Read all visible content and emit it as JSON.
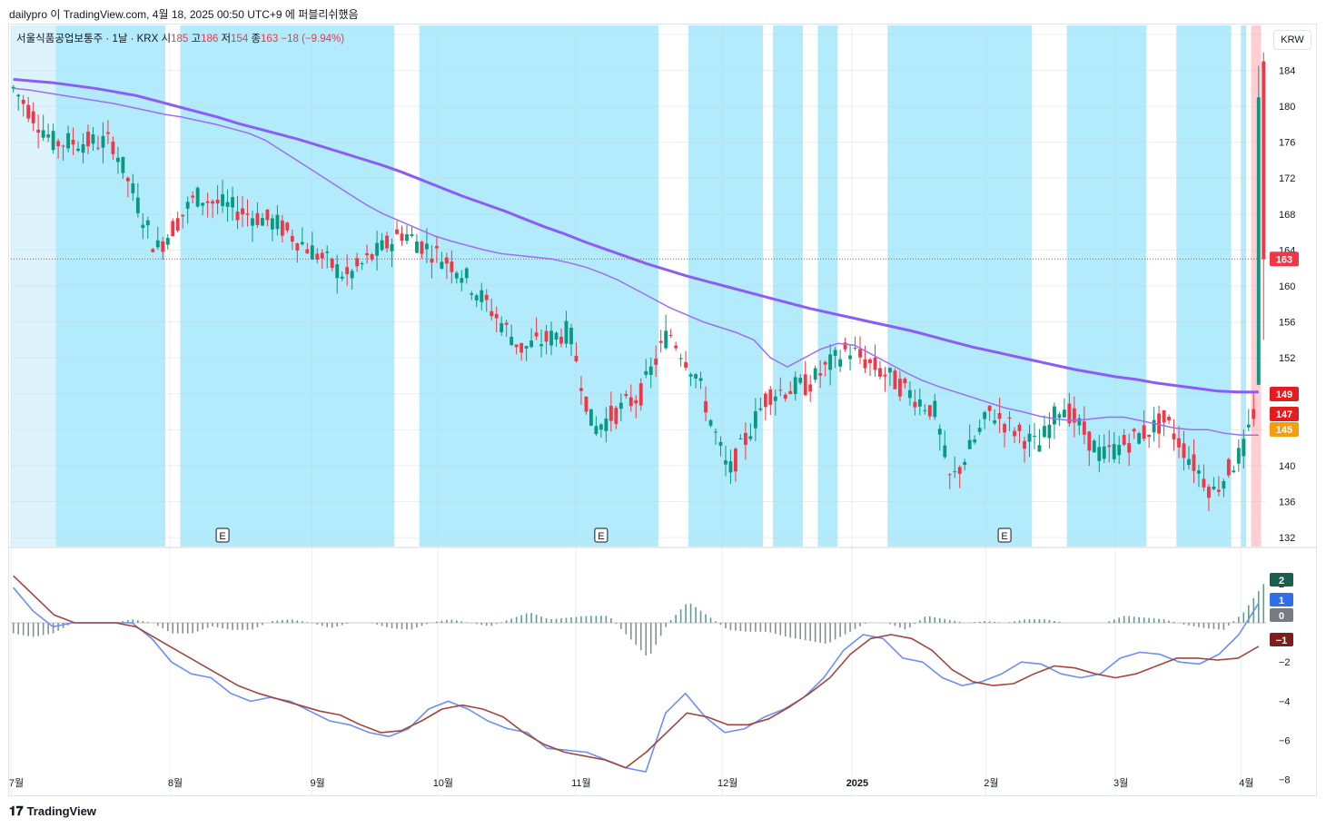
{
  "header": {
    "attribution": "dailypro 이 TradingView.com, 4월 18, 2025 00:50 UTC+9 에 퍼블리쉬했음"
  },
  "legend": {
    "symbol": "서울식품공업보통주 · 1날 · KRX",
    "open_label": "시",
    "open": "185",
    "high_label": "고",
    "high": "186",
    "low_label": "저",
    "low": "154",
    "close_label": "종",
    "close": "163",
    "change": "−18 (−9.94%)"
  },
  "currency_button": "KRW",
  "footer": {
    "brand": "TradingView"
  },
  "colors": {
    "up": "#089981",
    "down": "#f23645",
    "ma_fast": "#9c6ef2",
    "ma_slow": "#8b5cf6",
    "highlight_zone": "#b2ebfb",
    "alert_zone": "#ffcdd2",
    "macd_line": "#6b8ff2",
    "signal_line": "#a0463c",
    "hist": "#5d9e8e"
  },
  "chart_data": [
    {
      "type": "candlestick",
      "price_axis": {
        "ticks": [
          "188",
          "184",
          "180",
          "176",
          "172",
          "168",
          "164",
          "160",
          "156",
          "152",
          "148",
          "144",
          "140",
          "136",
          "132"
        ],
        "ylim": [
          131,
          189
        ]
      },
      "time_axis": {
        "ticks": [
          "7월",
          "8월",
          "9월",
          "10월",
          "11월",
          "12월",
          "2025",
          "2월",
          "3월",
          "4월"
        ]
      },
      "last_price_line": 163,
      "price_labels": [
        {
          "value": "163",
          "color": "#f23645"
        },
        {
          "value": "149",
          "color": "#e11d1d"
        },
        {
          "value": "147",
          "color": "#e11d1d"
        },
        {
          "value": "145",
          "color": "#f59e0b"
        }
      ],
      "event_markers": [
        {
          "label": "E",
          "x_index": 42
        },
        {
          "label": "E",
          "x_index": 118
        },
        {
          "label": "E",
          "x_index": 199
        }
      ],
      "highlight_zones": [
        [
          0,
          9
        ],
        [
          9,
          31
        ],
        [
          34,
          77
        ],
        [
          82,
          130
        ],
        [
          136,
          151
        ],
        [
          153,
          159
        ],
        [
          162,
          166
        ],
        [
          176,
          205
        ],
        [
          212,
          228
        ],
        [
          234,
          245
        ],
        [
          247,
          248
        ]
      ],
      "alert_zone": [
        249,
        251
      ],
      "ma_fast": [
        182,
        181.8,
        181.5,
        181.2,
        180.9,
        180.6,
        180.3,
        179.9,
        179.5,
        179.1,
        178.8,
        178.4,
        178.0,
        177.5,
        177.0,
        176.2,
        175.0,
        173.8,
        172.6,
        171.4,
        170.2,
        169.0,
        168.0,
        167.2,
        166.4,
        165.6,
        165.0,
        164.5,
        164.0,
        163.6,
        163.4,
        163.2,
        163.0,
        162.6,
        162.1,
        161.4,
        160.6,
        159.6,
        158.6,
        157.6,
        156.8,
        156.0,
        155.4,
        154.8,
        154.0,
        152.0,
        151.0,
        152.0,
        153.0,
        153.6,
        153.4,
        152.4,
        151.4,
        150.4,
        149.5,
        148.8,
        148.2,
        147.6,
        147.0,
        146.4,
        146.0,
        145.5,
        145.2,
        145.0,
        145.2,
        145.4,
        145.4,
        145.0,
        144.6,
        144.2,
        144.0,
        144.0,
        143.6,
        143.4,
        143.4
      ],
      "ma_slow": [
        183.0,
        182.8,
        182.6,
        182.3,
        182.0,
        181.6,
        181.2,
        180.6,
        180.0,
        179.4,
        178.8,
        178.1,
        177.5,
        176.9,
        176.3,
        175.6,
        174.9,
        174.2,
        173.5,
        172.7,
        171.8,
        170.9,
        170.0,
        169.2,
        168.4,
        167.5,
        166.6,
        165.8,
        164.9,
        164.1,
        163.3,
        162.5,
        161.8,
        161.1,
        160.5,
        159.9,
        159.3,
        158.7,
        158.1,
        157.5,
        157.0,
        156.5,
        156.0,
        155.5,
        155.0,
        154.4,
        153.8,
        153.2,
        152.7,
        152.2,
        151.7,
        151.2,
        150.7,
        150.3,
        149.9,
        149.6,
        149.2,
        148.9,
        148.6,
        148.3,
        148.2,
        148.2
      ],
      "macd_axis": {
        "ticks": [
          "2",
          "1",
          "0",
          "−1",
          "−2",
          "−4",
          "−6",
          "−8"
        ],
        "ylim": [
          -8.8,
          3.8
        ]
      },
      "macd_labels": [
        {
          "value": "2",
          "color": "#1b5e4e"
        },
        {
          "value": "1",
          "color": "#2f6fe8"
        },
        {
          "value": "0",
          "color": "#787b86"
        },
        {
          "value": "−1",
          "color": "#7f1d1d"
        }
      ],
      "macd_line": [
        1.8,
        0.6,
        -0.2,
        0.0,
        0.0,
        0.0,
        0.0,
        -0.8,
        -2.0,
        -2.6,
        -2.8,
        -3.6,
        -4.0,
        -3.8,
        -4.0,
        -4.5,
        -5.0,
        -5.2,
        -5.6,
        -5.8,
        -5.4,
        -4.4,
        -4.0,
        -4.4,
        -5.0,
        -5.4,
        -5.6,
        -6.4,
        -6.5,
        -6.6,
        -7.0,
        -7.4,
        -7.6,
        -4.6,
        -3.6,
        -4.8,
        -5.6,
        -5.4,
        -4.8,
        -4.4,
        -3.8,
        -2.8,
        -1.4,
        -0.6,
        -0.8,
        -1.8,
        -2.0,
        -2.8,
        -3.2,
        -3.0,
        -2.6,
        -2.0,
        -2.1,
        -2.6,
        -2.8,
        -2.6,
        -1.8,
        -1.5,
        -1.6,
        -2.0,
        -2.1,
        -1.6,
        -0.6,
        1.0
      ],
      "signal_line": [
        2.4,
        1.4,
        0.4,
        0.0,
        0.0,
        0.0,
        -0.2,
        -0.8,
        -1.4,
        -2.0,
        -2.6,
        -3.2,
        -3.6,
        -3.9,
        -4.2,
        -4.5,
        -4.7,
        -5.2,
        -5.6,
        -5.5,
        -5.0,
        -4.4,
        -4.2,
        -4.4,
        -4.8,
        -5.6,
        -6.2,
        -6.6,
        -6.8,
        -7.0,
        -7.4,
        -6.6,
        -5.6,
        -4.6,
        -4.8,
        -5.2,
        -5.2,
        -4.9,
        -4.3,
        -3.6,
        -2.8,
        -1.6,
        -0.8,
        -0.6,
        -0.8,
        -1.4,
        -2.4,
        -3.0,
        -3.2,
        -3.1,
        -2.6,
        -2.2,
        -2.3,
        -2.6,
        -2.8,
        -2.6,
        -2.2,
        -1.8,
        -1.8,
        -1.9,
        -1.8,
        -1.2
      ]
    }
  ]
}
